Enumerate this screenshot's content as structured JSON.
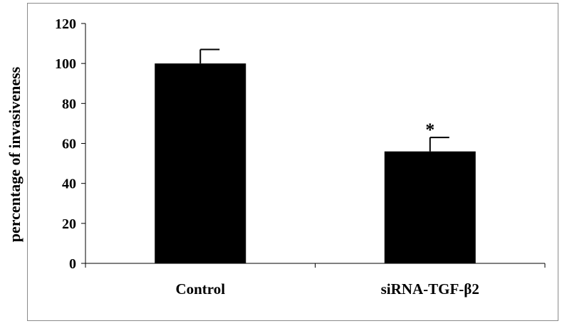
{
  "chart_data": {
    "type": "bar",
    "categories": [
      "Control",
      "siRNA-TGF-β2"
    ],
    "values": [
      100,
      56
    ],
    "errors": [
      7,
      7
    ],
    "annotations": [
      "",
      "*"
    ],
    "ylabel": "percentage of invasiveness",
    "xlabel": "",
    "ylim": [
      0,
      120
    ],
    "yticks": [
      0,
      20,
      40,
      60,
      80,
      100,
      120
    ],
    "bar_color": "#000000",
    "grid": false,
    "legend": "none"
  }
}
